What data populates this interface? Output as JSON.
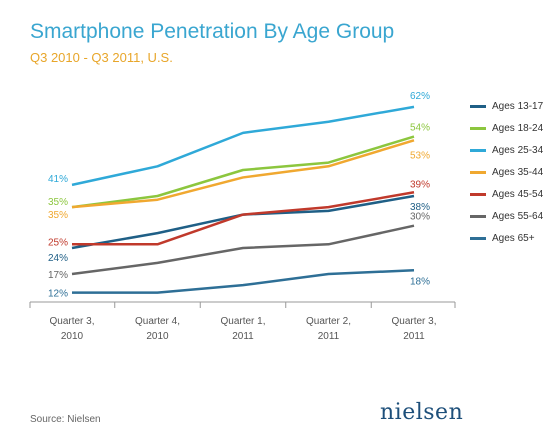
{
  "title": "Smartphone Penetration By Age Group",
  "subtitle": "Q3 2010 - Q3 2011, U.S.",
  "source": "Source: Nielsen",
  "logo": "nielsen",
  "chart_data": {
    "type": "line",
    "title": "Smartphone Penetration By Age Group",
    "subtitle": "Q3 2010 - Q3 2011, U.S.",
    "categories": [
      [
        "Quarter 3,",
        "2010"
      ],
      [
        "Quarter 4,",
        "2010"
      ],
      [
        "Quarter 1,",
        "2011"
      ],
      [
        "Quarter 2,",
        "2011"
      ],
      [
        "Quarter 3,",
        "2011"
      ]
    ],
    "ylim": [
      10,
      66
    ],
    "grid": false,
    "legend_position": "right",
    "series": [
      {
        "name": "Ages 13-17",
        "color": "#1f5f86",
        "values": [
          24,
          28,
          33,
          34,
          38
        ],
        "start_label": "24%",
        "end_label": "38%"
      },
      {
        "name": "Ages 18-24",
        "color": "#8cc63e",
        "values": [
          35,
          38,
          45,
          47,
          54
        ],
        "start_label": "35%",
        "end_label": "54%"
      },
      {
        "name": "Ages 25-34",
        "color": "#2fa9d8",
        "values": [
          41,
          46,
          55,
          58,
          62
        ],
        "start_label": "41%",
        "end_label": "62%"
      },
      {
        "name": "Ages 35-44",
        "color": "#f0a830",
        "values": [
          35,
          37,
          43,
          46,
          53
        ],
        "start_label": "35%",
        "end_label": "53%"
      },
      {
        "name": "Ages 45-54",
        "color": "#c0392b",
        "values": [
          25,
          25,
          33,
          35,
          39
        ],
        "start_label": "25%",
        "end_label": "39%"
      },
      {
        "name": "Ages 55-64",
        "color": "#666666",
        "values": [
          17,
          20,
          24,
          25,
          30
        ],
        "start_label": "17%",
        "end_label": "30%"
      },
      {
        "name": "Ages 65+",
        "color": "#2e6f96",
        "values": [
          12,
          12,
          14,
          17,
          18
        ],
        "start_label": "12%",
        "end_label": "18%"
      }
    ]
  }
}
